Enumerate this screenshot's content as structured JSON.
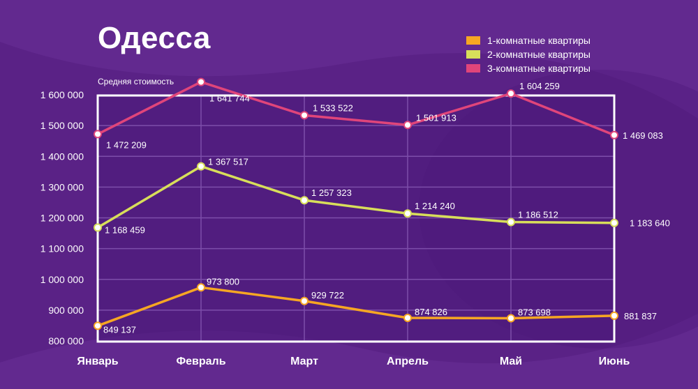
{
  "title": "Одесса",
  "colors": {
    "background": "#5a2286",
    "plot": "#4a1a7a",
    "grid": "#7d4eaa",
    "frame": "#ffffff",
    "series": [
      "#f6a623",
      "#d8de5a",
      "#e0457a"
    ]
  },
  "chart_data": {
    "type": "line",
    "title": "Одесса",
    "ylabel": "Средняя стоимость",
    "xlabel": "",
    "categories": [
      "Январь",
      "Февраль",
      "Март",
      "Апрель",
      "Май",
      "Июнь"
    ],
    "ylim": [
      800000,
      1600000
    ],
    "yticks": [
      800000,
      900000,
      1000000,
      1100000,
      1200000,
      1300000,
      1400000,
      1500000,
      1600000
    ],
    "ytick_labels": [
      "800 000",
      "900 000",
      "1 000 000",
      "1 100 000",
      "1 200 000",
      "1 300 000",
      "1 400 000",
      "1 500 000",
      "1 600 000"
    ],
    "grid": true,
    "legend": "top-right",
    "series": [
      {
        "name": "1-комнатные квартиры",
        "color": "#f6a623",
        "values": [
          849137,
          973800,
          929722,
          874826,
          873698,
          881837
        ],
        "labels": [
          "849 137",
          "973 800",
          "929 722",
          "874 826",
          "873 698",
          "881 837"
        ]
      },
      {
        "name": "2-комнатные квартиры",
        "color": "#d8de5a",
        "values": [
          1168459,
          1367517,
          1257323,
          1214240,
          1186512,
          1183640
        ],
        "labels": [
          "1 168 459",
          "1 367 517",
          "1 257 323",
          "1 214 240",
          "1 186 512",
          "1 183 640"
        ]
      },
      {
        "name": "3-комнатные квартиры",
        "color": "#e0457a",
        "values": [
          1472209,
          1641744,
          1533522,
          1501913,
          1604259,
          1469083
        ],
        "labels": [
          "1 472 209",
          "1 641 744",
          "1 533 522",
          "1 501 913",
          "1 604 259",
          "1 469 083"
        ]
      }
    ]
  }
}
